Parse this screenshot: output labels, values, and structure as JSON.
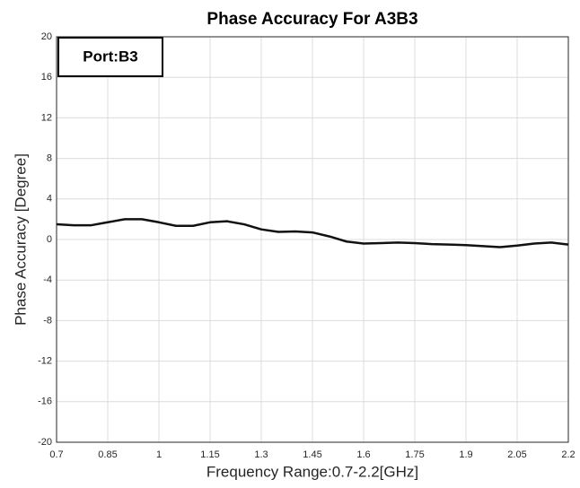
{
  "chart_data": {
    "type": "line",
    "title": "Phase Accuracy For A3B3",
    "xlabel": "Frequency Range:0.7-2.2[GHz]",
    "ylabel": "Phase Accuracy [Degree]",
    "annotation": "Port:B3",
    "x": [
      0.7,
      0.75,
      0.8,
      0.85,
      0.9,
      0.95,
      1.0,
      1.05,
      1.1,
      1.15,
      1.2,
      1.25,
      1.3,
      1.35,
      1.4,
      1.45,
      1.5,
      1.55,
      1.6,
      1.65,
      1.7,
      1.75,
      1.8,
      1.85,
      1.9,
      1.95,
      2.0,
      2.05,
      2.1,
      2.15,
      2.2
    ],
    "series": [
      {
        "color": "#111111",
        "values": [
          1.5,
          1.4,
          1.4,
          1.7,
          2.0,
          2.0,
          1.7,
          1.35,
          1.35,
          1.7,
          1.8,
          1.5,
          1.0,
          0.75,
          0.8,
          0.7,
          0.3,
          -0.2,
          -0.4,
          -0.35,
          -0.3,
          -0.35,
          -0.45,
          -0.5,
          -0.55,
          -0.65,
          -0.75,
          -0.6,
          -0.4,
          -0.3,
          -0.5
        ]
      }
    ],
    "xlim": [
      0.7,
      2.2
    ],
    "xticks": [
      0.7,
      0.85,
      1,
      1.15,
      1.3,
      1.45,
      1.6,
      1.75,
      1.9,
      2.05,
      2.2
    ],
    "ylim": [
      -20,
      20
    ],
    "yticks": [
      -20,
      -16,
      -12,
      -8,
      -4,
      0,
      4,
      8,
      12,
      16,
      20
    ],
    "grid": true
  }
}
